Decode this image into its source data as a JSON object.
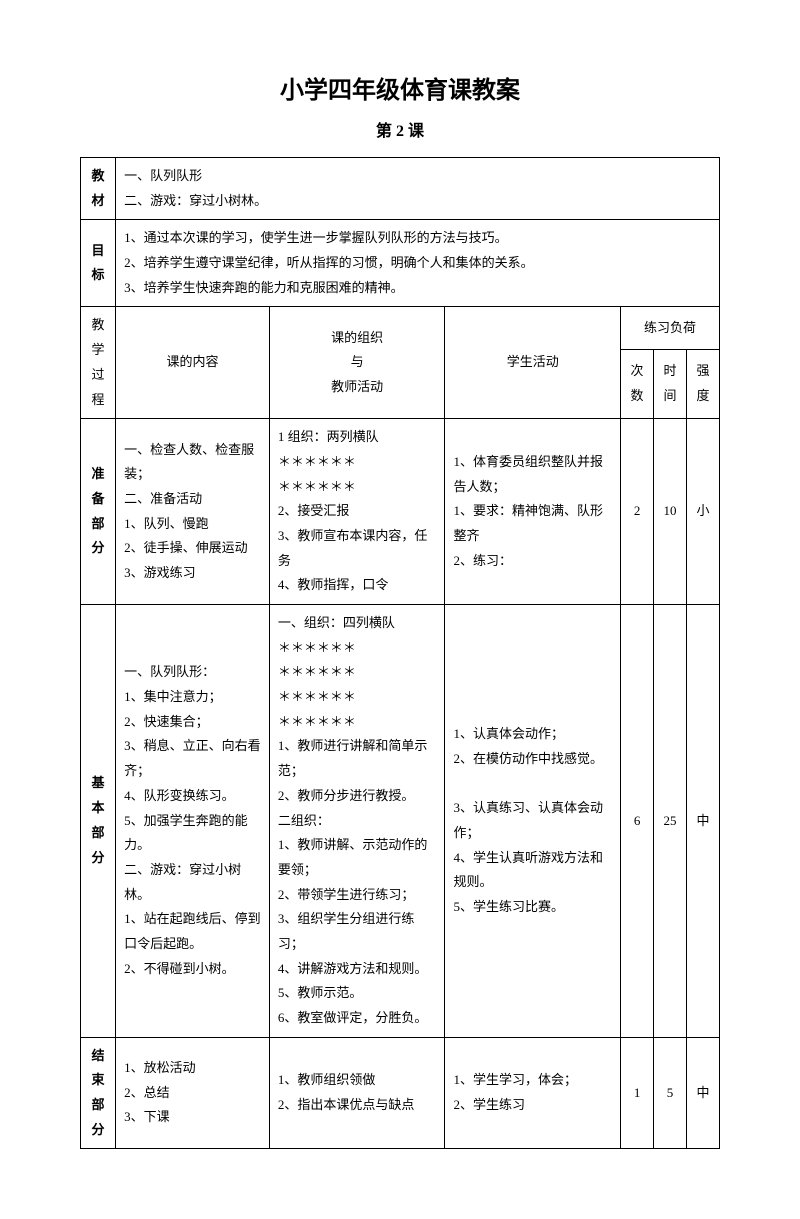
{
  "page": {
    "title": "小学四年级体育课教案",
    "subtitle": "第 2 课"
  },
  "header_rows": {
    "materials_label": "教材",
    "materials_content": "一、队列队形\n二、游戏：穿过小树林。",
    "goals_label": "目标",
    "goals_content": "1、通过本次课的学习，使学生进一步掌握队列队形的方法与技巧。\n2、培养学生遵守课堂纪律，听从指挥的习惯，明确个人和集体的关系。\n3、培养学生快速奔跑的能力和克服困难的精神。"
  },
  "table_header": {
    "process": "教学过程",
    "content": "课的内容",
    "organization": "课的组织\n与\n教师活动",
    "student_activity": "学生活动",
    "practice_load": "练习负荷",
    "count": "次数",
    "time": "时间",
    "intensity": "强度"
  },
  "sections": {
    "prep": {
      "label": "准备部分",
      "content": "一、检查人数、检查服装；\n二、准备活动\n1、队列、慢跑\n2、徒手操、伸展运动\n3、游戏练习",
      "organization": "1 组织：两列横队\n＊＊＊＊＊＊\n＊＊＊＊＊＊\n2、接受汇报\n3、教师宣布本课内容，任务\n4、教师指挥，口令",
      "activity": "1、体育委员组织整队并报告人数；\n1、要求：精神饱满、队形整齐\n2、练习：",
      "count": "2",
      "time": "10",
      "intensity": "小"
    },
    "main": {
      "label": "基本部分",
      "content": "一、队列队形：\n1、集中注意力；\n2、快速集合；\n3、稍息、立正、向右看齐；\n4、队形变换练习。\n5、加强学生奔跑的能力。\n二、游戏：穿过小树林。\n1、站在起跑线后、停到口令后起跑。\n2、不得碰到小树。",
      "organization": "一、组织：四列横队\n＊＊＊＊＊＊\n＊＊＊＊＊＊\n＊＊＊＊＊＊\n＊＊＊＊＊＊\n1、教师进行讲解和简单示范；\n2、教师分步进行教授。\n二组织：\n1、教师讲解、示范动作的要领；\n2、带领学生进行练习；\n3、组织学生分组进行练习；\n4、讲解游戏方法和规则。\n5、教师示范。\n6、教室做评定，分胜负。",
      "activity": "1、认真体会动作；\n2、在模仿动作中找感觉。\n\n3、认真练习、认真体会动作；\n4、学生认真听游戏方法和规则。\n5、学生练习比赛。",
      "count": "6",
      "time": "25",
      "intensity": "中"
    },
    "end": {
      "label": "结束部分",
      "content": "1、放松活动\n2、总结\n3、下课",
      "organization": "1、教师组织领做\n2、指出本课优点与缺点",
      "activity": "1、学生学习，体会；\n2、学生练习",
      "count": "1",
      "time": "5",
      "intensity": "中"
    }
  }
}
